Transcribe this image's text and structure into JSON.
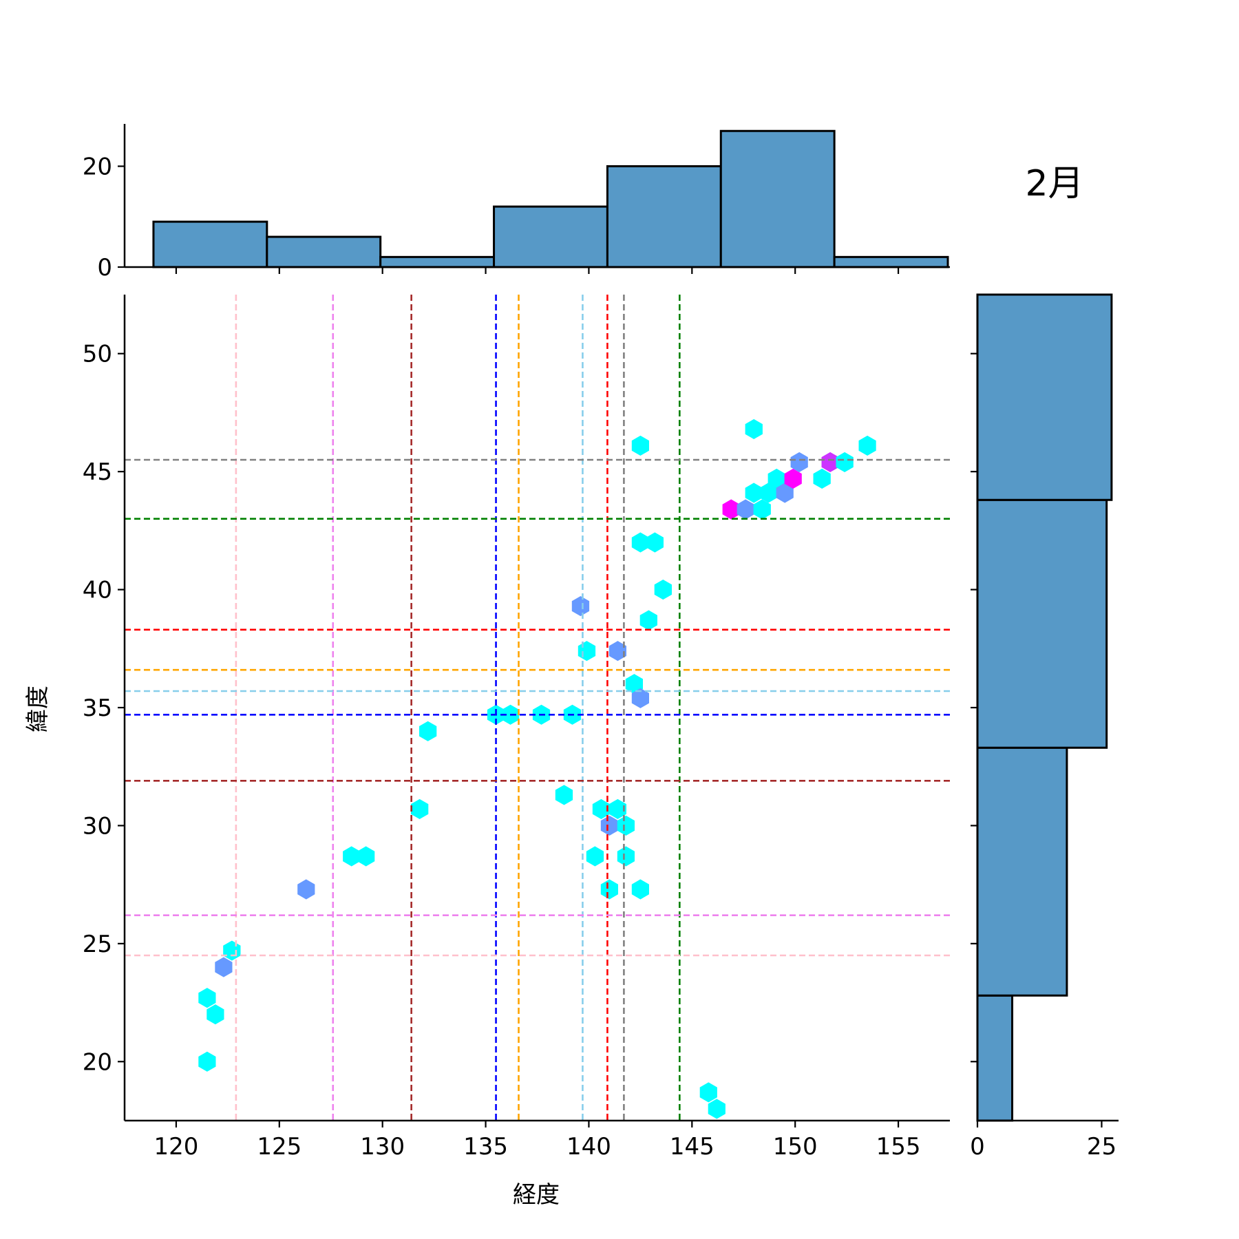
{
  "chart_data": {
    "type": "jointplot-hexbin",
    "title": "2月",
    "xlabel": "経度",
    "ylabel": "緯度",
    "xlim": [
      117.5,
      157.5
    ],
    "ylim": [
      17.5,
      52.5
    ],
    "xticks": [
      120,
      125,
      130,
      135,
      140,
      145,
      150,
      155
    ],
    "yticks": [
      20,
      25,
      30,
      35,
      40,
      45,
      50
    ],
    "top_hist": {
      "ylim": [
        0,
        28.4
      ],
      "yticks": [
        0,
        20
      ],
      "bins": [
        {
          "x0": 118.9,
          "x1": 124.4,
          "count": 9
        },
        {
          "x0": 124.4,
          "x1": 129.9,
          "count": 6
        },
        {
          "x0": 129.9,
          "x1": 135.4,
          "count": 2
        },
        {
          "x0": 135.4,
          "x1": 140.9,
          "count": 12
        },
        {
          "x0": 140.9,
          "x1": 146.4,
          "count": 20
        },
        {
          "x0": 146.4,
          "x1": 151.9,
          "count": 27
        },
        {
          "x0": 151.9,
          "x1": 157.4,
          "count": 2
        }
      ]
    },
    "right_hist": {
      "xlim": [
        0,
        28.4
      ],
      "xticks": [
        0,
        25
      ],
      "bins": [
        {
          "y0": 17.5,
          "y1": 22.8,
          "count": 7
        },
        {
          "y0": 22.8,
          "y1": 33.3,
          "count": 18
        },
        {
          "y0": 33.3,
          "y1": 43.8,
          "count": 26
        },
        {
          "y0": 43.8,
          "y1": 52.5,
          "count": 27
        }
      ]
    },
    "hexbins": [
      {
        "x": 121.5,
        "y": 20.0,
        "color": "#00ffff"
      },
      {
        "x": 121.9,
        "y": 22.0,
        "color": "#00ffff"
      },
      {
        "x": 121.5,
        "y": 22.7,
        "color": "#00ffff"
      },
      {
        "x": 122.3,
        "y": 24.0,
        "color": "#6699ff"
      },
      {
        "x": 122.7,
        "y": 24.7,
        "color": "#00ffff"
      },
      {
        "x": 126.3,
        "y": 27.3,
        "color": "#6699ff"
      },
      {
        "x": 128.5,
        "y": 28.7,
        "color": "#00ffff"
      },
      {
        "x": 129.2,
        "y": 28.7,
        "color": "#00ffff"
      },
      {
        "x": 131.8,
        "y": 30.7,
        "color": "#00ffff"
      },
      {
        "x": 132.2,
        "y": 34.0,
        "color": "#00ffff"
      },
      {
        "x": 135.5,
        "y": 34.7,
        "color": "#00ffff"
      },
      {
        "x": 136.2,
        "y": 34.7,
        "color": "#00ffff"
      },
      {
        "x": 137.7,
        "y": 34.7,
        "color": "#00ffff"
      },
      {
        "x": 139.2,
        "y": 34.7,
        "color": "#00ffff"
      },
      {
        "x": 138.8,
        "y": 31.3,
        "color": "#00ffff"
      },
      {
        "x": 139.6,
        "y": 39.3,
        "color": "#6699ff"
      },
      {
        "x": 139.9,
        "y": 37.4,
        "color": "#00ffff"
      },
      {
        "x": 140.3,
        "y": 28.7,
        "color": "#00ffff"
      },
      {
        "x": 140.6,
        "y": 30.7,
        "color": "#00ffff"
      },
      {
        "x": 141.0,
        "y": 30.0,
        "color": "#6699ff"
      },
      {
        "x": 141.4,
        "y": 30.7,
        "color": "#00ffff"
      },
      {
        "x": 141.8,
        "y": 30.0,
        "color": "#00ffff"
      },
      {
        "x": 141.0,
        "y": 27.3,
        "color": "#00ffff"
      },
      {
        "x": 141.8,
        "y": 28.7,
        "color": "#00ffff"
      },
      {
        "x": 142.5,
        "y": 27.3,
        "color": "#00ffff"
      },
      {
        "x": 141.4,
        "y": 37.4,
        "color": "#6699ff"
      },
      {
        "x": 142.2,
        "y": 36.0,
        "color": "#00ffff"
      },
      {
        "x": 142.5,
        "y": 35.4,
        "color": "#6699ff"
      },
      {
        "x": 142.9,
        "y": 38.7,
        "color": "#00ffff"
      },
      {
        "x": 143.6,
        "y": 40.0,
        "color": "#00ffff"
      },
      {
        "x": 142.5,
        "y": 42.0,
        "color": "#00ffff"
      },
      {
        "x": 143.2,
        "y": 42.0,
        "color": "#00ffff"
      },
      {
        "x": 142.5,
        "y": 46.1,
        "color": "#00ffff"
      },
      {
        "x": 145.8,
        "y": 18.7,
        "color": "#00ffff"
      },
      {
        "x": 146.2,
        "y": 18.0,
        "color": "#00ffff"
      },
      {
        "x": 146.9,
        "y": 43.4,
        "color": "#ff00ff"
      },
      {
        "x": 147.6,
        "y": 43.4,
        "color": "#6699ff"
      },
      {
        "x": 148.0,
        "y": 44.1,
        "color": "#00ffff"
      },
      {
        "x": 148.4,
        "y": 43.4,
        "color": "#00ffff"
      },
      {
        "x": 148.7,
        "y": 44.1,
        "color": "#00ffff"
      },
      {
        "x": 149.1,
        "y": 44.7,
        "color": "#00ffff"
      },
      {
        "x": 149.5,
        "y": 44.1,
        "color": "#6699ff"
      },
      {
        "x": 149.9,
        "y": 44.7,
        "color": "#ff00ff"
      },
      {
        "x": 150.2,
        "y": 45.4,
        "color": "#6699ff"
      },
      {
        "x": 151.3,
        "y": 44.7,
        "color": "#00ffff"
      },
      {
        "x": 151.7,
        "y": 45.4,
        "color": "#cc33ff"
      },
      {
        "x": 152.4,
        "y": 45.4,
        "color": "#00ffff"
      },
      {
        "x": 153.5,
        "y": 46.1,
        "color": "#00ffff"
      },
      {
        "x": 148.0,
        "y": 46.8,
        "color": "#00ffff"
      }
    ],
    "vlines": [
      {
        "x": 122.9,
        "color": "#ffc0cb"
      },
      {
        "x": 127.6,
        "color": "#ee82ee"
      },
      {
        "x": 131.4,
        "color": "#a52a2a"
      },
      {
        "x": 135.5,
        "color": "#0000ff"
      },
      {
        "x": 136.6,
        "color": "#ffa500"
      },
      {
        "x": 139.7,
        "color": "#87ceeb"
      },
      {
        "x": 140.9,
        "color": "#ff0000"
      },
      {
        "x": 141.7,
        "color": "#808080"
      },
      {
        "x": 144.4,
        "color": "#008000"
      }
    ],
    "hlines": [
      {
        "y": 24.5,
        "color": "#ffc0cb"
      },
      {
        "y": 26.2,
        "color": "#ee82ee"
      },
      {
        "y": 31.9,
        "color": "#a52a2a"
      },
      {
        "y": 34.7,
        "color": "#0000ff"
      },
      {
        "y": 35.7,
        "color": "#87ceeb"
      },
      {
        "y": 36.6,
        "color": "#ffa500"
      },
      {
        "y": 38.3,
        "color": "#ff0000"
      },
      {
        "y": 43.0,
        "color": "#008000"
      },
      {
        "y": 45.5,
        "color": "#808080"
      }
    ],
    "hist_color": "#5799c7",
    "grid": false
  }
}
